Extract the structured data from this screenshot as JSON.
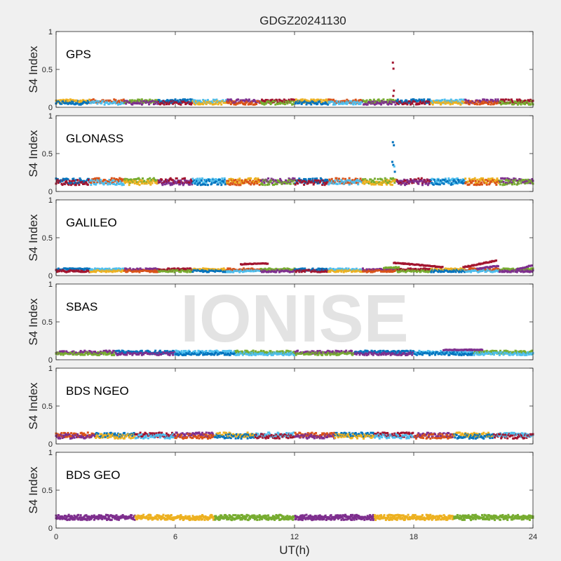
{
  "chart_data": {
    "type": "scatter",
    "title": "GDGZ20241130",
    "xlabel": "UT(h)",
    "ylabel": "S4 Index",
    "watermark": "IONISE",
    "xlim": [
      0,
      24
    ],
    "xticks": [
      0,
      6,
      12,
      18,
      24
    ],
    "xtick_labels": [
      "0",
      "6",
      "12",
      "18",
      "24"
    ],
    "ylim": [
      0,
      1
    ],
    "yticks": [
      0,
      0.5,
      1
    ],
    "ytick_labels": [
      "0",
      "0.5",
      "1"
    ],
    "grid": false,
    "series_colors": [
      "#0072BD",
      "#D95319",
      "#EDB120",
      "#7E2F8E",
      "#77AC30",
      "#4DBEEE",
      "#A2142F"
    ],
    "panels": [
      {
        "name": "GPS",
        "colors": [
          "#EDB120",
          "#D95319",
          "#77AC30",
          "#0072BD",
          "#4DBEEE",
          "#7E2F8E",
          "#A2142F"
        ],
        "baseline": 0.07,
        "noise": 0.025,
        "spikes": [
          {
            "x": 16.95,
            "y": 0.59,
            "color": "#A2142F"
          },
          {
            "x": 16.98,
            "y": 0.51,
            "color": "#A2142F"
          },
          {
            "x": 17.0,
            "y": 0.22,
            "color": "#A2142F"
          },
          {
            "x": 16.97,
            "y": 0.15,
            "color": "#A2142F"
          }
        ],
        "arcs": []
      },
      {
        "name": "GLONASS",
        "colors": [
          "#7E2F8E",
          "#0072BD",
          "#D95319",
          "#77AC30",
          "#A2142F",
          "#4DBEEE",
          "#EDB120"
        ],
        "baseline": 0.13,
        "noise": 0.035,
        "spikes": [
          {
            "x": 16.95,
            "y": 0.65,
            "color": "#0072BD"
          },
          {
            "x": 17.0,
            "y": 0.61,
            "color": "#0072BD"
          },
          {
            "x": 16.92,
            "y": 0.39,
            "color": "#0072BD"
          },
          {
            "x": 16.97,
            "y": 0.35,
            "color": "#0072BD"
          },
          {
            "x": 17.02,
            "y": 0.33,
            "color": "#4DBEEE"
          },
          {
            "x": 17.05,
            "y": 0.26,
            "color": "#0072BD"
          }
        ],
        "arcs": []
      },
      {
        "name": "GALILEO",
        "colors": [
          "#D95319",
          "#77AC30",
          "#0072BD",
          "#4DBEEE",
          "#7E2F8E",
          "#A2142F",
          "#EDB120"
        ],
        "baseline": 0.07,
        "noise": 0.015,
        "spikes": [],
        "arcs": [
          {
            "x0": 9.3,
            "x1": 10.7,
            "y0": 0.15,
            "y1": 0.16,
            "color": "#A2142F"
          },
          {
            "x0": 17.0,
            "x1": 19.5,
            "y0": 0.17,
            "y1": 0.11,
            "color": "#A2142F"
          },
          {
            "x0": 20.5,
            "x1": 22.2,
            "y0": 0.11,
            "y1": 0.2,
            "color": "#A2142F"
          },
          {
            "x0": 21.2,
            "x1": 22.3,
            "y0": 0.09,
            "y1": 0.13,
            "color": "#7E2F8E"
          },
          {
            "x0": 23.2,
            "x1": 24.0,
            "y0": 0.08,
            "y1": 0.14,
            "color": "#7E2F8E"
          },
          {
            "x0": 16.5,
            "x1": 17.3,
            "y0": 0.1,
            "y1": 0.11,
            "color": "#77AC30"
          }
        ]
      },
      {
        "name": "SBAS",
        "colors": [
          "#0072BD",
          "#4DBEEE",
          "#77AC30",
          "#7E2F8E"
        ],
        "baseline": 0.09,
        "noise": 0.02,
        "spikes": [],
        "arcs": [
          {
            "x0": 19.5,
            "x1": 21.5,
            "y0": 0.13,
            "y1": 0.13,
            "color": "#7E2F8E"
          }
        ]
      },
      {
        "name": "BDS NGEO",
        "colors": [
          "#A2142F",
          "#7E2F8E",
          "#EDB120",
          "#4DBEEE",
          "#D95319",
          "#0072BD"
        ],
        "baseline": 0.11,
        "noise": 0.03,
        "spikes": [],
        "arcs": []
      },
      {
        "name": "BDS GEO",
        "colors": [
          "#EDB120",
          "#77AC30",
          "#7E2F8E"
        ],
        "baseline": 0.14,
        "noise": 0.025,
        "spikes": [],
        "arcs": []
      }
    ]
  }
}
